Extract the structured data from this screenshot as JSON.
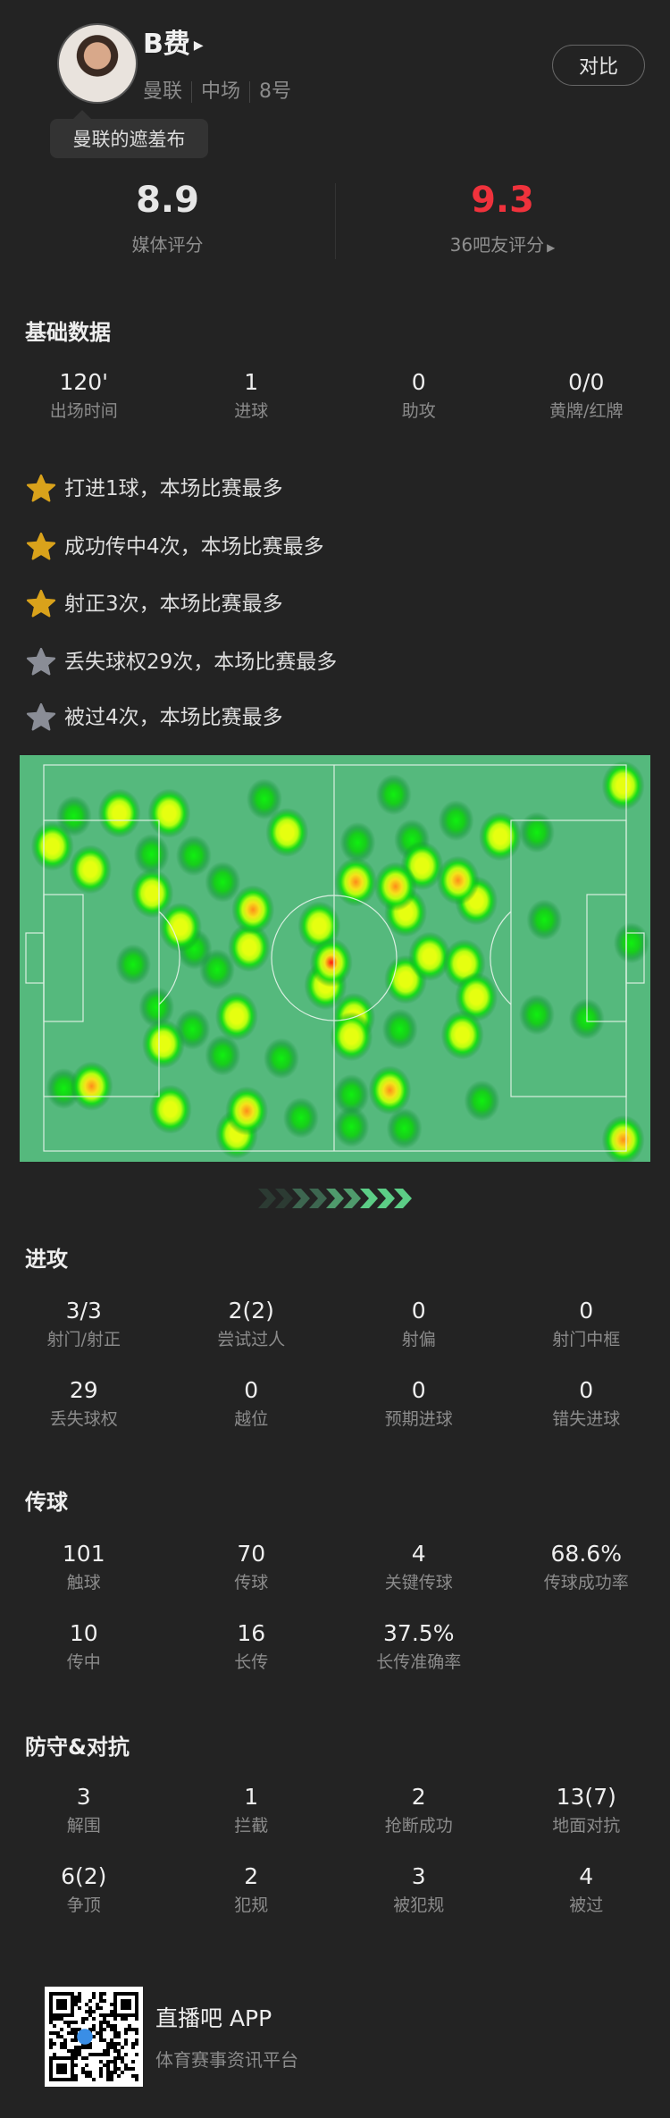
{
  "player": {
    "name": "B费",
    "team": "曼联",
    "position": "中场",
    "number": "8号",
    "tooltip": "曼联的遮羞布",
    "compare_label": "对比"
  },
  "ratings": {
    "media": {
      "value": "8.9",
      "label": "媒体评分"
    },
    "fans": {
      "value": "9.3",
      "label": "36吧友评分",
      "color": "#f0323c"
    }
  },
  "basic": {
    "title": "基础数据",
    "stats": [
      {
        "v": "120'",
        "l": "出场时间"
      },
      {
        "v": "1",
        "l": "进球"
      },
      {
        "v": "0",
        "l": "助攻"
      },
      {
        "v": "0/0",
        "l": "黄牌/红牌"
      }
    ]
  },
  "highlights": [
    {
      "text": "打进1球，本场比赛最多",
      "star": "gold"
    },
    {
      "text": "成功传中4次，本场比赛最多",
      "star": "gold"
    },
    {
      "text": "射正3次，本场比赛最多",
      "star": "gold"
    },
    {
      "text": "丢失球权29次，本场比赛最多",
      "star": "gray"
    },
    {
      "text": "被过4次，本场比赛最多",
      "star": "gray"
    }
  ],
  "colors": {
    "star_gold": "#d9a21b",
    "star_gray": "#8a8d96",
    "pitch": "#55b97d"
  },
  "heatmap": [
    [
      8.6,
      15,
      1
    ],
    [
      15.8,
      14.3,
      2
    ],
    [
      23.7,
      14.3,
      2
    ],
    [
      5.2,
      22.4,
      2
    ],
    [
      11.2,
      28.1,
      2
    ],
    [
      20.9,
      24.4,
      1
    ],
    [
      27.6,
      24.7,
      1
    ],
    [
      21,
      34,
      2
    ],
    [
      32.2,
      31.2,
      1
    ],
    [
      38.8,
      10.8,
      1
    ],
    [
      42.4,
      19,
      2
    ],
    [
      37,
      38,
      3
    ],
    [
      25.5,
      42.3,
      2
    ],
    [
      36.4,
      47.3,
      2
    ],
    [
      18,
      51.5,
      1
    ],
    [
      31.3,
      52.7,
      1
    ],
    [
      27.7,
      47.7,
      1
    ],
    [
      47.5,
      42,
      2
    ],
    [
      49.4,
      51,
      4
    ],
    [
      48.5,
      56.6,
      2
    ],
    [
      21.7,
      62,
      1
    ],
    [
      34.4,
      64.2,
      2
    ],
    [
      27.4,
      67.4,
      1
    ],
    [
      22.8,
      71,
      2
    ],
    [
      32.2,
      73.8,
      1
    ],
    [
      41.5,
      74.6,
      1
    ],
    [
      11.4,
      81.4,
      3
    ],
    [
      7,
      82,
      1
    ],
    [
      23.9,
      87.1,
      2
    ],
    [
      36,
      87.5,
      3
    ],
    [
      34.4,
      93.2,
      2
    ],
    [
      44.6,
      89.2,
      1
    ],
    [
      52.6,
      83.5,
      1
    ],
    [
      58.7,
      82.4,
      3
    ],
    [
      52.6,
      91.4,
      1
    ],
    [
      61,
      91.8,
      1
    ],
    [
      53,
      64.5,
      2
    ],
    [
      52.6,
      69.2,
      2
    ],
    [
      60.3,
      67.4,
      1
    ],
    [
      61.2,
      55.2,
      2
    ],
    [
      65,
      49.5,
      2
    ],
    [
      70.5,
      51.3,
      2
    ],
    [
      72.4,
      59.5,
      2
    ],
    [
      70.2,
      68.8,
      2
    ],
    [
      73.3,
      85,
      1
    ],
    [
      53.6,
      21.5,
      1
    ],
    [
      53.3,
      31.2,
      3
    ],
    [
      59.3,
      9.7,
      1
    ],
    [
      62.2,
      20.8,
      1
    ],
    [
      59.6,
      32.3,
      3
    ],
    [
      61.2,
      38.7,
      2
    ],
    [
      69.2,
      16.1,
      1
    ],
    [
      69.5,
      30.8,
      3
    ],
    [
      72.4,
      35.8,
      2
    ],
    [
      76.2,
      20,
      2
    ],
    [
      82,
      19,
      1
    ],
    [
      83.2,
      40.5,
      1
    ],
    [
      82,
      63.8,
      1
    ],
    [
      89.9,
      64.9,
      1
    ],
    [
      97,
      46.2,
      1
    ],
    [
      95.7,
      7.5,
      2
    ],
    [
      95.7,
      94.6,
      3
    ],
    [
      63.8,
      27.2,
      2
    ]
  ],
  "attack": {
    "title": "进攻",
    "stats": [
      {
        "v": "3/3",
        "l": "射门/射正"
      },
      {
        "v": "2(2)",
        "l": "尝试过人"
      },
      {
        "v": "0",
        "l": "射偏"
      },
      {
        "v": "0",
        "l": "射门中框"
      },
      {
        "v": "29",
        "l": "丢失球权"
      },
      {
        "v": "0",
        "l": "越位"
      },
      {
        "v": "0",
        "l": "预期进球"
      },
      {
        "v": "0",
        "l": "错失进球"
      }
    ]
  },
  "passing": {
    "title": "传球",
    "stats": [
      {
        "v": "101",
        "l": "触球"
      },
      {
        "v": "70",
        "l": "传球"
      },
      {
        "v": "4",
        "l": "关键传球"
      },
      {
        "v": "68.6%",
        "l": "传球成功率"
      },
      {
        "v": "10",
        "l": "传中"
      },
      {
        "v": "16",
        "l": "长传"
      },
      {
        "v": "37.5%",
        "l": "长传准确率"
      }
    ]
  },
  "defense": {
    "title": "防守&对抗",
    "stats": [
      {
        "v": "3",
        "l": "解围"
      },
      {
        "v": "1",
        "l": "拦截"
      },
      {
        "v": "2",
        "l": "抢断成功"
      },
      {
        "v": "13(7)",
        "l": "地面对抗"
      },
      {
        "v": "6(2)",
        "l": "争顶"
      },
      {
        "v": "2",
        "l": "犯规"
      },
      {
        "v": "3",
        "l": "被犯规"
      },
      {
        "v": "4",
        "l": "被过"
      }
    ]
  },
  "footer": {
    "app": "直播吧 APP",
    "tagline": "体育赛事资讯平台"
  }
}
